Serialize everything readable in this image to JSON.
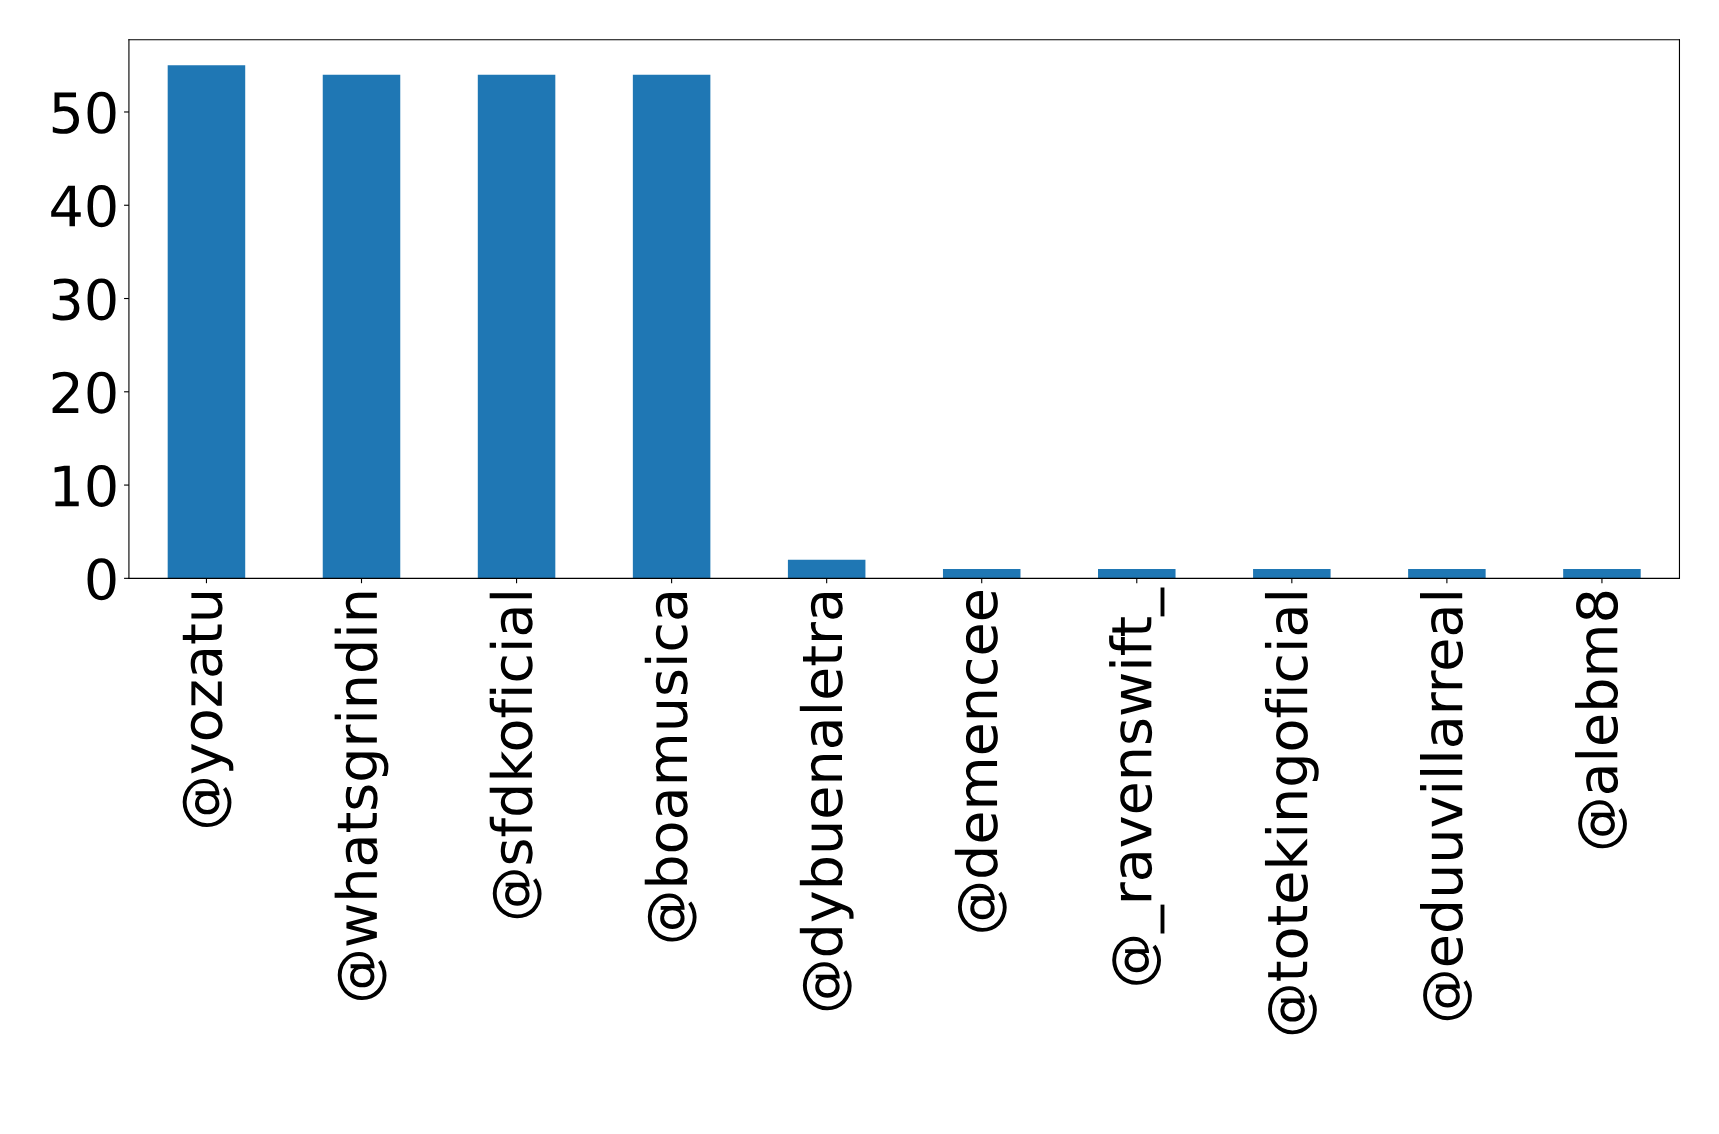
{
  "chart_data": {
    "type": "bar",
    "categories": [
      "@yozatu",
      "@whatsgrindin",
      "@sfdkoficial",
      "@boamusica",
      "@dybuenaletra",
      "@demencee",
      "@_ravenswift_",
      "@totekingoficial",
      "@eduuvillarreal",
      "@alebm8"
    ],
    "values": [
      55,
      54,
      54,
      54,
      2,
      1,
      1,
      1,
      1,
      1
    ],
    "color": "#1f77b4",
    "ylim": [
      0,
      57.75
    ],
    "yticks": [
      0,
      10,
      20,
      30,
      40,
      50
    ],
    "grid": false,
    "legend": false
  }
}
